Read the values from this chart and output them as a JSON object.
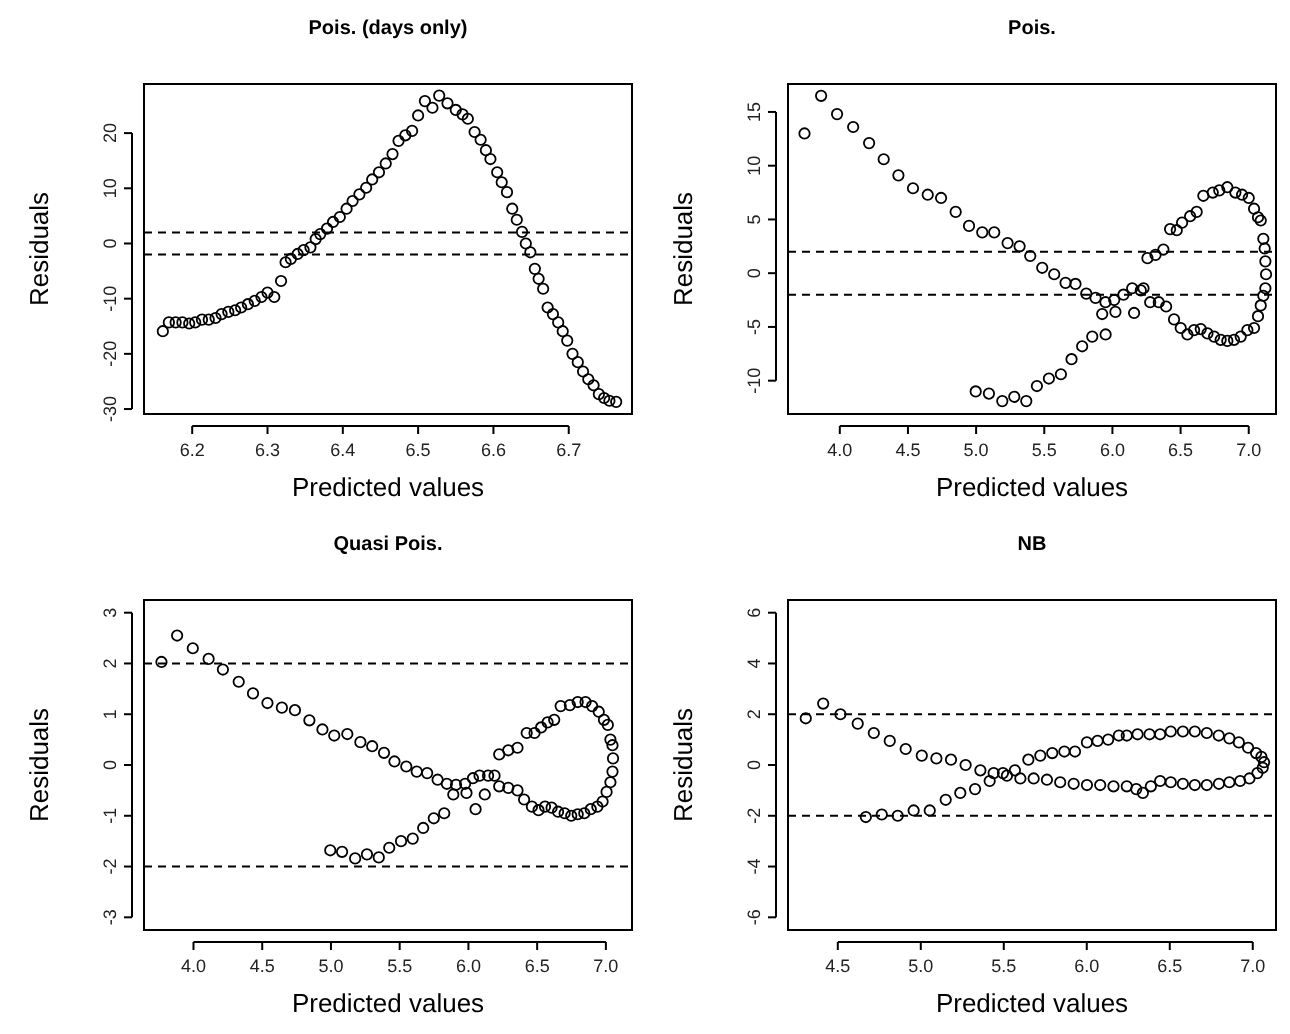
{
  "chart_data": [
    {
      "type": "scatter",
      "title": "Pois. (days only)",
      "xlabel": "Predicted values",
      "ylabel": "Residuals",
      "marker": "circle",
      "grid": false,
      "xlim": [
        6.136,
        6.784
      ],
      "ylim": [
        -30.9,
        28.9
      ],
      "xticks": [
        6.2,
        6.3,
        6.4,
        6.5,
        6.6,
        6.7
      ],
      "yticks": [
        -30,
        -20,
        -10,
        0,
        10,
        20
      ],
      "ref_lines": [
        {
          "axis": "y",
          "value": 2,
          "line_style": "dashed"
        },
        {
          "axis": "y",
          "value": -2,
          "line_style": "dashed"
        }
      ],
      "series": [
        {
          "color": "#000000",
          "x": [
            6.161,
            6.169,
            6.178,
            6.187,
            6.196,
            6.204,
            6.213,
            6.222,
            6.231,
            6.239,
            6.248,
            6.257,
            6.265,
            6.274,
            6.283,
            6.292,
            6.3,
            6.309,
            6.318,
            6.324,
            6.331,
            6.34,
            6.348,
            6.357,
            6.364,
            6.37,
            6.379,
            6.387,
            6.396,
            6.405,
            6.413,
            6.422,
            6.431,
            6.439,
            6.448,
            6.457,
            6.466,
            6.474,
            6.483,
            6.492,
            6.5,
            6.509,
            6.519,
            6.528,
            6.539,
            6.55,
            6.559,
            6.566,
            6.575,
            6.583,
            6.59,
            6.596,
            6.605,
            6.611,
            6.618,
            6.625,
            6.631,
            6.638,
            6.643,
            6.649,
            6.655,
            6.66,
            6.666,
            6.672,
            6.679,
            6.686,
            6.692,
            6.698,
            6.705,
            6.712,
            6.719,
            6.726,
            6.733,
            6.74,
            6.747,
            6.754,
            6.763
          ],
          "values": [
            -15.9,
            -14.3,
            -14.3,
            -14.3,
            -14.5,
            -14.3,
            -13.8,
            -13.8,
            -13.5,
            -12.8,
            -12.4,
            -12.1,
            -11.6,
            -11.0,
            -10.4,
            -9.7,
            -8.9,
            -9.7,
            -6.8,
            -3.4,
            -2.8,
            -1.9,
            -1.2,
            -0.7,
            0.8,
            1.7,
            2.7,
            3.9,
            4.8,
            6.3,
            7.7,
            8.9,
            10.1,
            11.6,
            12.9,
            14.5,
            16.2,
            18.6,
            19.6,
            20.4,
            23.2,
            25.8,
            24.6,
            26.8,
            25.4,
            24.2,
            23.4,
            22.6,
            20.2,
            18.8,
            16.9,
            15.3,
            12.9,
            11.1,
            9.3,
            6.3,
            4.3,
            2.1,
            0,
            -1.6,
            -4.6,
            -6.4,
            -8.2,
            -11.6,
            -12.8,
            -14.3,
            -15.9,
            -17.6,
            -20.0,
            -21.5,
            -23.2,
            -24.6,
            -25.7,
            -27.3,
            -28.0,
            -28.5,
            -28.7
          ]
        }
      ]
    },
    {
      "type": "scatter",
      "title": "Pois.",
      "xlabel": "Predicted values",
      "ylabel": "Residuals",
      "marker": "circle",
      "grid": false,
      "xlim": [
        3.62,
        7.2
      ],
      "ylim": [
        -13.1,
        17.6
      ],
      "xticks": [
        {
          "value": 4,
          "label": "4.0"
        },
        4.5,
        {
          "value": 5,
          "label": "5.0"
        },
        5.5,
        {
          "value": 6,
          "label": "6.0"
        },
        6.5,
        {
          "value": 7,
          "label": "7.0"
        }
      ],
      "yticks": [
        -10,
        -5,
        0,
        5,
        10,
        15
      ],
      "ref_lines": [
        {
          "axis": "y",
          "value": 2,
          "line_style": "dashed"
        },
        {
          "axis": "y",
          "value": -2,
          "line_style": "dashed"
        }
      ],
      "series": [
        {
          "color": "#000000",
          "x": [
            3.741,
            3.863,
            3.98,
            4.098,
            4.215,
            4.322,
            4.43,
            4.537,
            4.645,
            4.743,
            4.85,
            4.948,
            5.045,
            5.133,
            5.231,
            5.319,
            5.397,
            5.485,
            5.573,
            5.656,
            5.729,
            5.808,
            5.876,
            5.949,
            6.013,
            6.081,
            6.145,
            6.208,
            6.228,
            6.277,
            6.34,
            6.394,
            6.452,
            6.501,
            6.55,
            6.599,
            6.648,
            6.697,
            6.746,
            6.794,
            6.843,
            6.892,
            6.941,
            6.99,
            7.039,
            7.068,
            7.088,
            7.107,
            7.122,
            7.127,
            7.122,
            7.117,
            7.107,
            7.088,
            7.068,
            7.039,
            7.0,
            6.951,
            6.902,
            6.843,
            6.784,
            6.736,
            6.667,
            6.618,
            6.57,
            6.511,
            6.472,
            6.423,
            6.374,
            6.316,
            6.257,
            6.159,
            5.95,
            6.022,
            5.925,
            5.852,
            5.778,
            5.7,
            5.622,
            5.534,
            5.446,
            5.368,
            5.28,
            5.192,
            5.094,
            4.997
          ],
          "values": [
            13.0,
            16.5,
            14.8,
            13.6,
            12.1,
            10.6,
            9.1,
            7.9,
            7.3,
            7.0,
            5.7,
            4.4,
            3.8,
            3.8,
            2.8,
            2.5,
            1.6,
            0.5,
            -0.1,
            -0.9,
            -1.0,
            -1.9,
            -2.3,
            -2.7,
            -2.5,
            -2.0,
            -1.4,
            -1.6,
            -1.4,
            -2.7,
            -2.7,
            -3.1,
            -4.3,
            -5.1,
            -5.7,
            -5.3,
            -5.2,
            -5.6,
            -5.9,
            -6.2,
            -6.3,
            -6.2,
            -5.9,
            -5.3,
            -5.1,
            -4.0,
            -3.0,
            -2.1,
            -1.4,
            -0.1,
            1.1,
            2.3,
            3.2,
            4.9,
            5.2,
            6.0,
            7.0,
            7.3,
            7.5,
            8.0,
            7.7,
            7.5,
            7.2,
            5.7,
            5.3,
            4.7,
            4.0,
            4.1,
            2.2,
            1.7,
            1.4,
            -3.7,
            -5.7,
            -3.6,
            -3.8,
            -5.9,
            -6.8,
            -8.0,
            -9.4,
            -9.8,
            -10.5,
            -11.9,
            -11.5,
            -11.9,
            -11.2,
            -11.0
          ]
        }
      ]
    },
    {
      "type": "scatter",
      "title": "Quasi Pois.",
      "xlabel": "Predicted values",
      "ylabel": "Residuals",
      "marker": "circle",
      "grid": false,
      "xlim": [
        3.64,
        7.19
      ],
      "ylim": [
        -3.25,
        3.25
      ],
      "xticks": [
        {
          "value": 4,
          "label": "4.0"
        },
        4.5,
        {
          "value": 5,
          "label": "5.0"
        },
        5.5,
        {
          "value": 6,
          "label": "6.0"
        },
        6.5,
        {
          "value": 7,
          "label": "7.0"
        }
      ],
      "yticks": [
        -3,
        -2,
        -1,
        0,
        1,
        2,
        3
      ],
      "ref_lines": [
        {
          "axis": "y",
          "value": 2,
          "line_style": "dashed"
        },
        {
          "axis": "y",
          "value": -2,
          "line_style": "dashed"
        }
      ],
      "series": [
        {
          "color": "#000000",
          "x": [
            3.767,
            3.881,
            3.995,
            4.11,
            4.214,
            4.329,
            4.433,
            4.538,
            4.643,
            4.738,
            4.843,
            4.938,
            5.024,
            5.119,
            5.214,
            5.3,
            5.386,
            5.462,
            5.548,
            5.624,
            5.7,
            5.776,
            5.843,
            5.91,
            5.976,
            6.033,
            6.081,
            6.143,
            6.19,
            6.224,
            6.29,
            6.357,
            6.405,
            6.462,
            6.51,
            6.557,
            6.605,
            6.652,
            6.7,
            6.748,
            6.795,
            6.843,
            6.89,
            6.938,
            6.976,
            7.005,
            7.033,
            7.048,
            7.052,
            7.048,
            7.033,
            7.014,
            6.986,
            6.948,
            6.9,
            6.852,
            6.795,
            6.738,
            6.671,
            6.624,
            6.576,
            6.529,
            6.481,
            6.424,
            6.357,
            6.29,
            6.224,
            6.119,
            6.052,
            5.986,
            5.89,
            5.824,
            5.748,
            5.671,
            5.595,
            5.51,
            5.424,
            5.348,
            5.262,
            5.176,
            5.081,
            4.995
          ],
          "values": [
            2.03,
            2.55,
            2.3,
            2.09,
            1.88,
            1.64,
            1.41,
            1.22,
            1.13,
            1.08,
            0.88,
            0.7,
            0.58,
            0.61,
            0.45,
            0.37,
            0.24,
            0.07,
            -0.03,
            -0.13,
            -0.16,
            -0.29,
            -0.37,
            -0.39,
            -0.37,
            -0.26,
            -0.21,
            -0.21,
            -0.21,
            -0.42,
            -0.45,
            -0.5,
            -0.68,
            -0.82,
            -0.89,
            -0.82,
            -0.84,
            -0.92,
            -0.95,
            -1.0,
            -0.97,
            -0.95,
            -0.87,
            -0.82,
            -0.72,
            -0.53,
            -0.34,
            -0.13,
            0.13,
            0.39,
            0.5,
            0.79,
            0.89,
            1.05,
            1.16,
            1.24,
            1.24,
            1.18,
            1.16,
            0.89,
            0.84,
            0.74,
            0.63,
            0.63,
            0.34,
            0.29,
            0.21,
            -0.58,
            -0.87,
            -0.55,
            -0.58,
            -0.95,
            -1.05,
            -1.24,
            -1.45,
            -1.5,
            -1.63,
            -1.82,
            -1.76,
            -1.84,
            -1.71,
            -1.68
          ]
        }
      ]
    },
    {
      "type": "scatter",
      "title": "NB",
      "xlabel": "Predicted values",
      "ylabel": "Residuals",
      "marker": "circle",
      "grid": false,
      "xlim": [
        4.2,
        7.14
      ],
      "ylim": [
        -6.5,
        6.5
      ],
      "xticks": [
        4.5,
        {
          "value": 5,
          "label": "5.0"
        },
        5.5,
        {
          "value": 6,
          "label": "6.0"
        },
        6.5,
        {
          "value": 7,
          "label": "7.0"
        }
      ],
      "yticks": [
        -6,
        -4,
        -2,
        0,
        2,
        4,
        6
      ],
      "ref_lines": [
        {
          "axis": "y",
          "value": 2,
          "line_style": "dashed"
        },
        {
          "axis": "y",
          "value": -2,
          "line_style": "dashed"
        }
      ],
      "series": [
        {
          "color": "#000000",
          "x": [
            4.307,
            4.412,
            4.516,
            4.62,
            4.717,
            4.813,
            4.909,
            5.006,
            5.094,
            5.182,
            5.27,
            5.359,
            5.439,
            5.519,
            5.6,
            5.68,
            5.76,
            5.84,
            5.921,
            6.001,
            6.081,
            6.161,
            6.241,
            6.298,
            6.338,
            6.386,
            6.442,
            6.506,
            6.579,
            6.651,
            6.723,
            6.796,
            6.859,
            6.924,
            6.98,
            7.028,
            7.06,
            7.068,
            7.052,
            7.02,
            6.972,
            6.916,
            6.859,
            6.795,
            6.723,
            6.651,
            6.579,
            6.506,
            6.442,
            6.378,
            6.306,
            6.241,
            6.193,
            6.129,
            6.065,
            6.001,
            5.929,
            5.865,
            5.792,
            5.72,
            5.648,
            5.567,
            5.495,
            5.415,
            5.327,
            5.238,
            5.15,
            5.054,
            4.957,
            4.861,
            4.765,
            4.669
          ],
          "values": [
            1.84,
            2.42,
            2.0,
            1.63,
            1.26,
            0.95,
            0.63,
            0.37,
            0.26,
            0.21,
            0,
            -0.21,
            -0.32,
            -0.42,
            -0.53,
            -0.53,
            -0.58,
            -0.68,
            -0.74,
            -0.79,
            -0.79,
            -0.84,
            -0.84,
            -0.95,
            -1.1,
            -0.84,
            -0.63,
            -0.68,
            -0.74,
            -0.79,
            -0.79,
            -0.74,
            -0.68,
            -0.63,
            -0.53,
            -0.32,
            -0.11,
            0.11,
            0.32,
            0.47,
            0.68,
            0.89,
            1.05,
            1.16,
            1.26,
            1.32,
            1.32,
            1.32,
            1.21,
            1.21,
            1.21,
            1.16,
            1.16,
            1.0,
            0.95,
            0.89,
            0.53,
            0.53,
            0.47,
            0.37,
            0.21,
            -0.21,
            -0.32,
            -0.63,
            -0.95,
            -1.1,
            -1.37,
            -1.79,
            -1.79,
            -2.0,
            -1.95,
            -2.05
          ]
        }
      ]
    }
  ]
}
